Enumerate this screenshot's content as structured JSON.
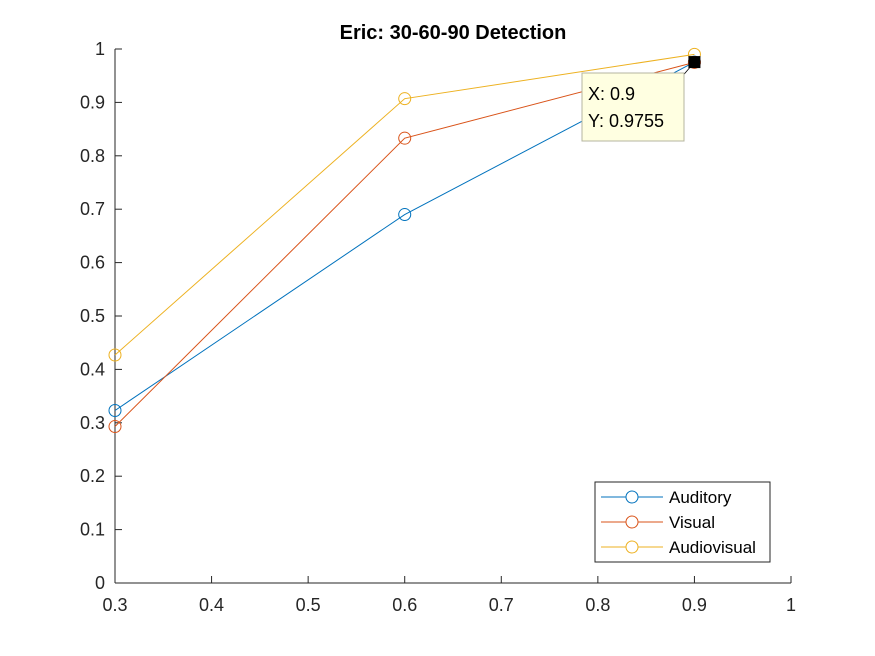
{
  "chart_data": {
    "type": "line",
    "title": "Eric: 30-60-90 Detection",
    "xlabel": "",
    "ylabel": "",
    "x": [
      0.3,
      0.6,
      0.9
    ],
    "xlim": [
      0.3,
      1
    ],
    "ylim": [
      0,
      1
    ],
    "xticks": [
      "0.3",
      "0.4",
      "0.5",
      "0.6",
      "0.7",
      "0.8",
      "0.9",
      "1"
    ],
    "yticks": [
      "0",
      "0.1",
      "0.2",
      "0.3",
      "0.4",
      "0.5",
      "0.6",
      "0.7",
      "0.8",
      "0.9",
      "1"
    ],
    "grid": false,
    "legend_position": "bottom-right",
    "series": [
      {
        "name": "Auditory",
        "values": [
          0.323,
          0.69,
          0.9755
        ],
        "color": "#0072BD"
      },
      {
        "name": "Visual",
        "values": [
          0.293,
          0.833,
          0.975
        ],
        "color": "#D95319"
      },
      {
        "name": "Audiovisual",
        "values": [
          0.427,
          0.907,
          0.99
        ],
        "color": "#EDB120"
      }
    ],
    "datatip": {
      "x_label": "X: 0.9",
      "y_label": "Y: 0.9755",
      "x": 0.9,
      "y": 0.9755
    }
  }
}
